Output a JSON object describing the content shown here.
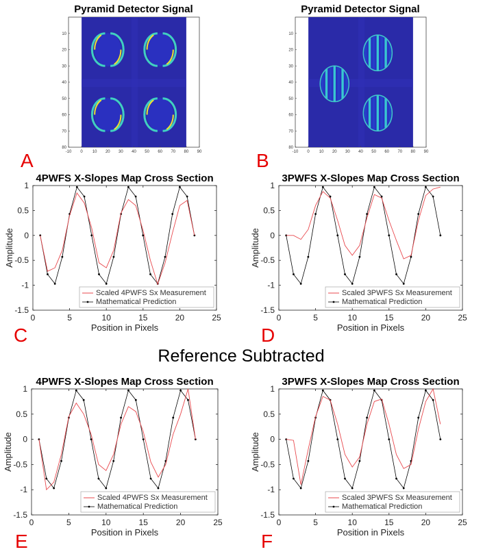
{
  "section_heading": "Reference Subtracted",
  "panel_letters": [
    "A",
    "B",
    "C",
    "D",
    "E",
    "F"
  ],
  "colors": {
    "measurement": "#e8474c",
    "prediction": "#000000",
    "detector_background": "#2a2aa8",
    "detector_ring": "#f0e030"
  },
  "chart_data": [
    {
      "id": "A",
      "type": "heatmap",
      "title": "Pyramid Detector Signal",
      "xlim": [
        -10,
        90
      ],
      "ylim": [
        80,
        0
      ],
      "xticks": [
        "-10",
        "0",
        "10",
        "20",
        "30",
        "40",
        "50",
        "60",
        "70",
        "80",
        "90"
      ],
      "yticks": [
        "10",
        "20",
        "30",
        "40",
        "50",
        "60",
        "70",
        "80"
      ],
      "pupils": [
        {
          "cx": 20,
          "cy": 20
        },
        {
          "cx": 60,
          "cy": 20
        },
        {
          "cx": 20,
          "cy": 60
        },
        {
          "cx": 60,
          "cy": 60
        }
      ],
      "pupil_radius": 10
    },
    {
      "id": "B",
      "type": "heatmap",
      "title": "Pyramid Detector Signal",
      "xlim": [
        -10,
        90
      ],
      "ylim": [
        80,
        0
      ],
      "xticks": [
        "-10",
        "0",
        "10",
        "20",
        "30",
        "40",
        "50",
        "60",
        "70",
        "80",
        "90"
      ],
      "yticks": [
        "10",
        "20",
        "30",
        "40",
        "50",
        "60",
        "70",
        "80"
      ],
      "pupils": [
        {
          "cx": 20,
          "cy": 41
        },
        {
          "cx": 53,
          "cy": 22
        },
        {
          "cx": 53,
          "cy": 59
        }
      ],
      "pupil_radius": 11
    },
    {
      "id": "C",
      "type": "line",
      "title": "4PWFS X-Slopes Map Cross Section",
      "xlabel": "Position in Pixels",
      "ylabel": "Amplitude",
      "xlim": [
        0,
        25
      ],
      "ylim": [
        -1.5,
        1
      ],
      "xticks": [
        "0",
        "5",
        "10",
        "15",
        "20",
        "25"
      ],
      "yticks": [
        "-1.5",
        "-1",
        "-0.5",
        "0",
        "0.5",
        "1"
      ],
      "series": [
        {
          "name": "Scaled 4PWFS Sx Measurement",
          "x": [
            1,
            2,
            3,
            4,
            5,
            6,
            7,
            8,
            9,
            10,
            11,
            12,
            13,
            14,
            15,
            16,
            17,
            18,
            19,
            20,
            21,
            22
          ],
          "y": [
            0,
            -0.72,
            -0.65,
            -0.3,
            0.4,
            0.85,
            0.65,
            0.15,
            -0.55,
            -0.65,
            -0.3,
            0.45,
            0.72,
            0.6,
            0.1,
            -0.5,
            -0.98,
            -0.55,
            0.05,
            0.6,
            0.7,
            0.0
          ]
        },
        {
          "name": "Mathematical Prediction",
          "x": [
            1,
            2,
            3,
            4,
            5,
            6,
            7,
            8,
            9,
            10,
            11,
            12,
            13,
            14,
            15,
            16,
            17,
            18,
            19,
            20,
            21,
            22
          ],
          "y": [
            0,
            -0.78,
            -0.97,
            -0.43,
            0.43,
            0.97,
            0.78,
            0.0,
            -0.78,
            -0.97,
            -0.43,
            0.43,
            0.97,
            0.78,
            0.0,
            -0.78,
            -0.97,
            -0.43,
            0.43,
            0.97,
            0.78,
            0.0
          ]
        }
      ]
    },
    {
      "id": "D",
      "type": "line",
      "title": "3PWFS X-Slopes Map Cross Section",
      "xlabel": "Position in Pixels",
      "ylabel": "Amplitude",
      "xlim": [
        0,
        25
      ],
      "ylim": [
        -1.5,
        1
      ],
      "xticks": [
        "0",
        "5",
        "10",
        "15",
        "20",
        "25"
      ],
      "yticks": [
        "-1.5",
        "-1",
        "-0.5",
        "0",
        "0.5",
        "1"
      ],
      "series": [
        {
          "name": "Scaled 3PWFS Sx Measurement",
          "x": [
            1,
            2,
            3,
            4,
            5,
            6,
            7,
            8,
            9,
            10,
            11,
            12,
            13,
            14,
            15,
            16,
            17,
            18,
            19,
            20,
            21,
            22
          ],
          "y": [
            0,
            0,
            -0.08,
            0.12,
            0.6,
            0.88,
            0.75,
            0.3,
            -0.2,
            -0.4,
            -0.2,
            0.35,
            0.82,
            0.75,
            0.3,
            -0.1,
            -0.47,
            -0.4,
            0.3,
            0.8,
            0.93,
            0.97
          ]
        },
        {
          "name": "Mathematical Prediction",
          "x": [
            1,
            2,
            3,
            4,
            5,
            6,
            7,
            8,
            9,
            10,
            11,
            12,
            13,
            14,
            15,
            16,
            17,
            18,
            19,
            20,
            21,
            22
          ],
          "y": [
            0,
            -0.78,
            -0.97,
            -0.43,
            0.43,
            0.97,
            0.78,
            0.0,
            -0.78,
            -0.97,
            -0.43,
            0.43,
            0.97,
            0.78,
            0.0,
            -0.78,
            -0.97,
            -0.43,
            0.43,
            0.97,
            0.78,
            0.0
          ]
        }
      ]
    },
    {
      "id": "E",
      "type": "line",
      "title": "4PWFS X-Slopes Map Cross Section",
      "xlabel": "Position in Pixels",
      "ylabel": "Amplitude",
      "xlim": [
        0,
        25
      ],
      "ylim": [
        -1.5,
        1
      ],
      "xticks": [
        "0",
        "5",
        "10",
        "15",
        "20",
        "25"
      ],
      "yticks": [
        "-1.5",
        "-1",
        "-0.5",
        "0",
        "0.5",
        "1"
      ],
      "series": [
        {
          "name": "Scaled 4PWFS Sx Measurement",
          "x": [
            1,
            2,
            3,
            4,
            5,
            6,
            7,
            8,
            9,
            10,
            11,
            12,
            13,
            14,
            15,
            16,
            17,
            18,
            19,
            20,
            21,
            22
          ],
          "y": [
            0,
            -1.0,
            -0.85,
            -0.3,
            0.45,
            0.72,
            0.5,
            0.1,
            -0.5,
            -0.62,
            -0.3,
            0.3,
            0.65,
            0.55,
            0.15,
            -0.45,
            -0.75,
            -0.5,
            0.1,
            0.5,
            1.0,
            0.0
          ]
        },
        {
          "name": "Mathematical Prediction",
          "x": [
            1,
            2,
            3,
            4,
            5,
            6,
            7,
            8,
            9,
            10,
            11,
            12,
            13,
            14,
            15,
            16,
            17,
            18,
            19,
            20,
            21,
            22
          ],
          "y": [
            0,
            -0.78,
            -0.97,
            -0.43,
            0.43,
            0.97,
            0.78,
            0.0,
            -0.78,
            -0.97,
            -0.43,
            0.43,
            0.97,
            0.78,
            0.0,
            -0.78,
            -0.97,
            -0.43,
            0.43,
            0.97,
            0.78,
            0.0
          ]
        }
      ]
    },
    {
      "id": "F",
      "type": "line",
      "title": "3PWFS X-Slopes Map Cross Section",
      "xlabel": "Position in Pixels",
      "ylabel": "Amplitude",
      "xlim": [
        0,
        25
      ],
      "ylim": [
        -1.5,
        1
      ],
      "xticks": [
        "0",
        "5",
        "10",
        "15",
        "20",
        "25"
      ],
      "yticks": [
        "-1.5",
        "-1",
        "-0.5",
        "0",
        "0.5",
        "1"
      ],
      "series": [
        {
          "name": "Scaled 3PWFS Sx Measurement",
          "x": [
            1,
            2,
            3,
            4,
            5,
            6,
            7,
            8,
            9,
            10,
            11,
            12,
            13,
            14,
            15,
            16,
            17,
            18,
            19,
            20,
            21,
            22
          ],
          "y": [
            0,
            -0.02,
            -0.9,
            -0.2,
            0.45,
            0.85,
            0.78,
            0.3,
            -0.3,
            -0.55,
            -0.35,
            0.3,
            0.75,
            0.8,
            0.3,
            -0.3,
            -0.58,
            -0.5,
            0.2,
            0.75,
            1.0,
            0.3
          ]
        },
        {
          "name": "Mathematical Prediction",
          "x": [
            1,
            2,
            3,
            4,
            5,
            6,
            7,
            8,
            9,
            10,
            11,
            12,
            13,
            14,
            15,
            16,
            17,
            18,
            19,
            20,
            21,
            22
          ],
          "y": [
            0,
            -0.78,
            -0.97,
            -0.43,
            0.43,
            0.97,
            0.78,
            0.0,
            -0.78,
            -0.97,
            -0.43,
            0.43,
            0.97,
            0.78,
            0.0,
            -0.78,
            -0.97,
            -0.43,
            0.43,
            0.97,
            0.78,
            0.0
          ]
        }
      ]
    }
  ]
}
